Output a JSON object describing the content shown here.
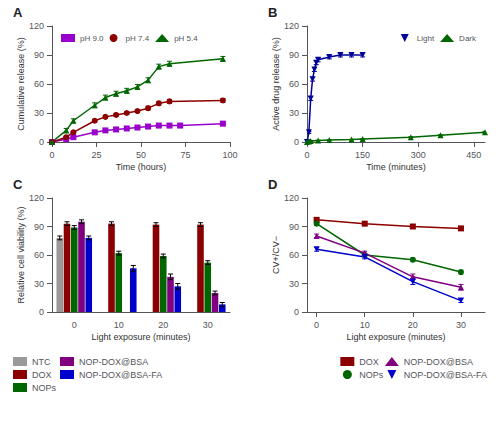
{
  "chart_data": [
    {
      "type": "line",
      "title": "A",
      "xlabel": "Time (hours)",
      "ylabel": "Cumulative release (%)",
      "xlim": [
        0,
        100
      ],
      "xticks": [
        0,
        25,
        50,
        75,
        100
      ],
      "ylim": [
        0,
        120
      ],
      "yticks": [
        0,
        30,
        60,
        90,
        120
      ],
      "grid": false,
      "legend": "upper left",
      "series": [
        {
          "name": "pH 9.0",
          "color": "#9900cc",
          "marker": "square",
          "x": [
            0,
            8,
            12,
            24,
            30,
            36,
            42,
            48,
            54,
            60,
            66,
            72,
            96
          ],
          "values": [
            0,
            3,
            5,
            10,
            12,
            13,
            14,
            15,
            16,
            17,
            17,
            17,
            19
          ],
          "yerr": [
            0,
            1,
            1,
            1.5,
            1.5,
            1.5,
            1.5,
            1.5,
            1.5,
            1.5,
            1.5,
            1.5,
            2
          ]
        },
        {
          "name": "pH 7.4",
          "color": "#8b0000",
          "marker": "circle",
          "x": [
            0,
            8,
            12,
            24,
            30,
            36,
            42,
            48,
            54,
            60,
            66,
            96
          ],
          "values": [
            0,
            5,
            10,
            22,
            26,
            28,
            30,
            32,
            35,
            40,
            42,
            43
          ],
          "yerr": [
            0,
            1,
            1,
            1.5,
            1.5,
            1.5,
            1.5,
            1.5,
            2,
            2,
            2,
            2
          ]
        },
        {
          "name": "pH 5.4",
          "color": "#006600",
          "marker": "triangle-up",
          "x": [
            0,
            8,
            12,
            24,
            30,
            36,
            42,
            48,
            54,
            60,
            66,
            96
          ],
          "values": [
            0,
            12,
            22,
            38,
            46,
            50,
            53,
            57,
            64,
            78,
            81,
            86
          ],
          "yerr": [
            0,
            2,
            2,
            2.5,
            2.5,
            2.5,
            2.5,
            2.5,
            2.5,
            2.5,
            2.5,
            2.5
          ]
        }
      ]
    },
    {
      "type": "line",
      "title": "B",
      "xlabel": "Time (minutes)",
      "ylabel": "Active drug release (%)",
      "xlim": [
        0,
        480
      ],
      "xticks": [
        0,
        150,
        300,
        450
      ],
      "ylim": [
        0,
        120
      ],
      "yticks": [
        0,
        30,
        60,
        90,
        120
      ],
      "grid": false,
      "legend": "upper right",
      "series": [
        {
          "name": "Light",
          "color": "#000099",
          "marker": "triangle-down",
          "x": [
            0,
            5,
            10,
            15,
            20,
            25,
            30,
            60,
            90,
            120,
            150
          ],
          "values": [
            0,
            10,
            45,
            65,
            75,
            82,
            85,
            88,
            90,
            90,
            90
          ],
          "yerr": [
            0,
            1,
            2,
            2,
            2,
            2,
            2,
            2,
            2,
            2,
            2
          ]
        },
        {
          "name": "Dark",
          "color": "#006600",
          "marker": "triangle-up",
          "x": [
            0,
            5,
            10,
            30,
            60,
            120,
            150,
            280,
            360,
            480
          ],
          "values": [
            0,
            0.5,
            1,
            1.5,
            2,
            2.5,
            3,
            5,
            7,
            10
          ],
          "yerr": [
            0,
            0.3,
            0.3,
            0.3,
            0.3,
            0.3,
            0.3,
            0.5,
            0.5,
            1
          ]
        }
      ]
    },
    {
      "type": "bar",
      "title": "C",
      "xlabel": "Light exposure (minutes)",
      "ylabel": "Relative cell viability (%)",
      "categories": [
        "0",
        "10",
        "20",
        "30"
      ],
      "ylim": [
        0,
        120
      ],
      "yticks": [
        0,
        30,
        60,
        90,
        120
      ],
      "grid": false,
      "legend": "lower left",
      "series": [
        {
          "name": "NTC",
          "color": "#999999",
          "values": [
            78,
            null,
            null,
            null
          ],
          "yerr": [
            2,
            0,
            0,
            0
          ]
        },
        {
          "name": "DOX",
          "color": "#8b0000",
          "values": [
            93,
            93,
            92,
            92
          ],
          "yerr": [
            2,
            2,
            2,
            2
          ]
        },
        {
          "name": "NOPs",
          "color": "#006600",
          "values": [
            89,
            62,
            59,
            52
          ],
          "yerr": [
            2,
            2,
            2,
            2
          ]
        },
        {
          "name": "NOP-DOX@BSA",
          "color": "#800080",
          "values": [
            95,
            null,
            37,
            20
          ],
          "yerr": [
            2,
            0,
            3,
            2
          ]
        },
        {
          "name": "NOP-DOX@BSA-FA",
          "color": "#0000cc",
          "values": [
            78,
            46,
            27,
            8
          ],
          "yerr": [
            2,
            3,
            3,
            2
          ]
        }
      ]
    },
    {
      "type": "line",
      "title": "D",
      "xlabel": "Light exposure (minutes)",
      "ylabel": "CV+/CV−",
      "xlim": [
        -2,
        35
      ],
      "xticks": [
        0,
        10,
        20,
        30
      ],
      "ylim": [
        0,
        120
      ],
      "yticks": [
        0,
        30,
        60,
        90,
        120
      ],
      "grid": false,
      "legend": "lower right",
      "series": [
        {
          "name": "DOX",
          "color": "#8b0000",
          "marker": "square",
          "x": [
            0,
            10,
            20,
            30
          ],
          "values": [
            97,
            93,
            90,
            88
          ],
          "yerr": [
            2,
            2,
            2,
            2
          ]
        },
        {
          "name": "NOPs",
          "color": "#006600",
          "marker": "circle",
          "x": [
            0,
            10,
            20,
            30
          ],
          "values": [
            93,
            60,
            55,
            42
          ],
          "yerr": [
            2,
            2,
            2,
            2
          ]
        },
        {
          "name": "NOP-DOX@BSA",
          "color": "#800080",
          "marker": "triangle-up",
          "x": [
            0,
            10,
            20,
            30
          ],
          "values": [
            80,
            62,
            37,
            26
          ],
          "yerr": [
            2,
            2,
            3,
            3
          ]
        },
        {
          "name": "NOP-DOX@BSA-FA",
          "color": "#0000cc",
          "marker": "triangle-down",
          "x": [
            0,
            10,
            20,
            30
          ],
          "values": [
            66,
            58,
            32,
            12
          ],
          "yerr": [
            2,
            2,
            3,
            2
          ]
        }
      ]
    }
  ]
}
